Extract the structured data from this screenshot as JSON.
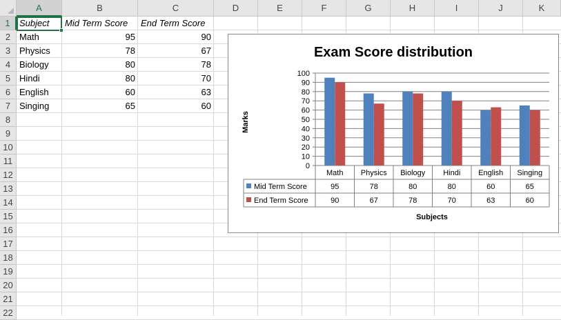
{
  "sheet": {
    "columns": [
      "A",
      "B",
      "C",
      "D",
      "E",
      "F",
      "G",
      "H",
      "I",
      "J",
      "K"
    ],
    "rows": [
      "1",
      "2",
      "3",
      "4",
      "5",
      "6",
      "7",
      "8",
      "9",
      "10",
      "11",
      "12",
      "13",
      "14",
      "15",
      "16",
      "17",
      "18",
      "19",
      "20",
      "21",
      "22"
    ],
    "selected_column": "A",
    "selected_row": "1",
    "header": {
      "subject": "Subject",
      "mid": "Mid Term Score",
      "end": "End Term Score"
    },
    "data": [
      {
        "subject": "Math",
        "mid": "95",
        "end": "90"
      },
      {
        "subject": "Physics",
        "mid": "78",
        "end": "67"
      },
      {
        "subject": "Biology",
        "mid": "80",
        "end": "78"
      },
      {
        "subject": "Hindi",
        "mid": "80",
        "end": "70"
      },
      {
        "subject": "English",
        "mid": "60",
        "end": "63"
      },
      {
        "subject": "Singing",
        "mid": "65",
        "end": "60"
      }
    ],
    "accent_color": "#217346"
  },
  "chart_data": {
    "type": "bar",
    "title": "Exam Score distribution",
    "xlabel": "Subjects",
    "ylabel": "Marks",
    "categories": [
      "Math",
      "Physics",
      "Biology",
      "Hindi",
      "English",
      "Singing"
    ],
    "series": [
      {
        "name": "Mid Term Score",
        "values": [
          95,
          78,
          80,
          80,
          60,
          65
        ],
        "color": "#4f81bd"
      },
      {
        "name": "End Term Score",
        "values": [
          90,
          67,
          78,
          70,
          63,
          60
        ],
        "color": "#c0504d"
      }
    ],
    "ylim": [
      0,
      100
    ],
    "yticks": [
      "0",
      "10",
      "20",
      "30",
      "40",
      "50",
      "60",
      "70",
      "80",
      "90",
      "100"
    ],
    "grid": true,
    "legend": "data table below plot"
  }
}
